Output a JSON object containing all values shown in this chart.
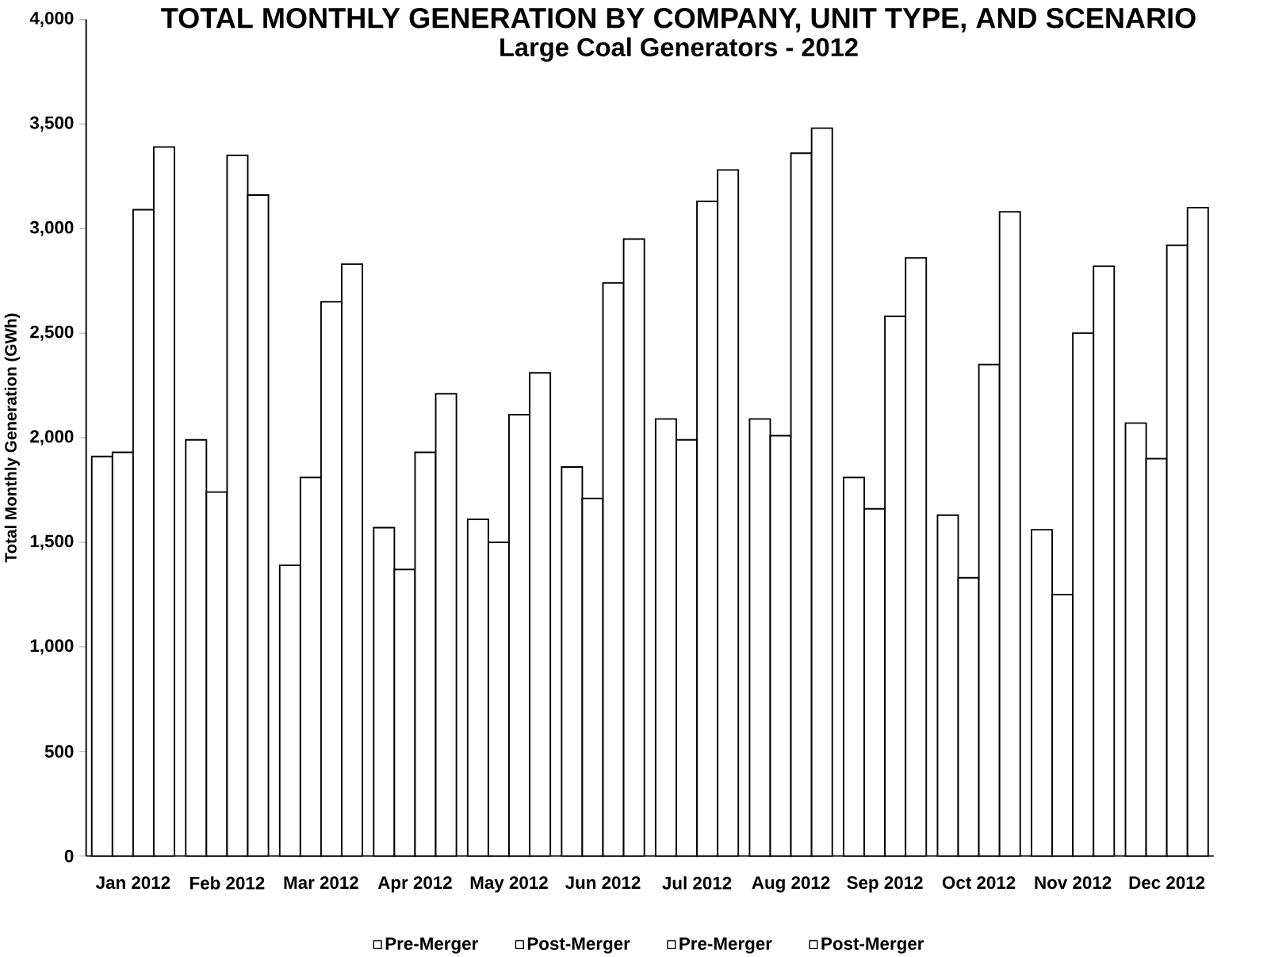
{
  "chart_data": {
    "type": "bar",
    "title": "TOTAL MONTHLY GENERATION BY COMPANY, UNIT TYPE, AND SCENARIO",
    "subtitle": "Large Coal Generators - 2012",
    "ylabel": "Total Monthly Generation (GWh)",
    "categories": [
      "Jan 2012",
      "Feb 2012",
      "Mar 2012",
      "Apr 2012",
      "May 2012",
      "Jun 2012",
      "Jul 2012",
      "Aug 2012",
      "Sep 2012",
      "Oct 2012",
      "Nov 2012",
      "Dec 2012"
    ],
    "series": [
      {
        "name": "Pre-Merger",
        "color": "#ffffff",
        "values": [
          1910,
          1990,
          1390,
          1570,
          1610,
          1860,
          2090,
          2090,
          1810,
          1630,
          1560,
          2070
        ]
      },
      {
        "name": "Post-Merger",
        "color": "#ffffff",
        "values": [
          1930,
          1740,
          1810,
          1370,
          1500,
          1710,
          1990,
          2010,
          1660,
          1330,
          1250,
          1900
        ]
      },
      {
        "name": "Pre-Merger",
        "color": "#ffffff",
        "values": [
          3090,
          3350,
          2650,
          1930,
          2110,
          2740,
          3130,
          3360,
          2580,
          2350,
          2500,
          2920
        ]
      },
      {
        "name": "Post-Merger",
        "color": "#ffffff",
        "values": [
          3390,
          3160,
          2830,
          2210,
          2310,
          2950,
          3280,
          3480,
          2860,
          3080,
          2820,
          3100
        ]
      }
    ],
    "ylim": [
      0,
      4000
    ],
    "yticks": [
      0,
      500,
      {
        "value": 1000,
        "label": "1,000"
      },
      {
        "value": 1500,
        "label": "1,500"
      },
      {
        "value": 2000,
        "label": "2,000"
      },
      {
        "value": 2500,
        "label": "2,500"
      },
      {
        "value": 3000,
        "label": "3,000"
      },
      {
        "value": 3500,
        "label": "3,500"
      },
      {
        "value": 4000,
        "label": "4,000"
      }
    ],
    "legend": "bottom"
  }
}
